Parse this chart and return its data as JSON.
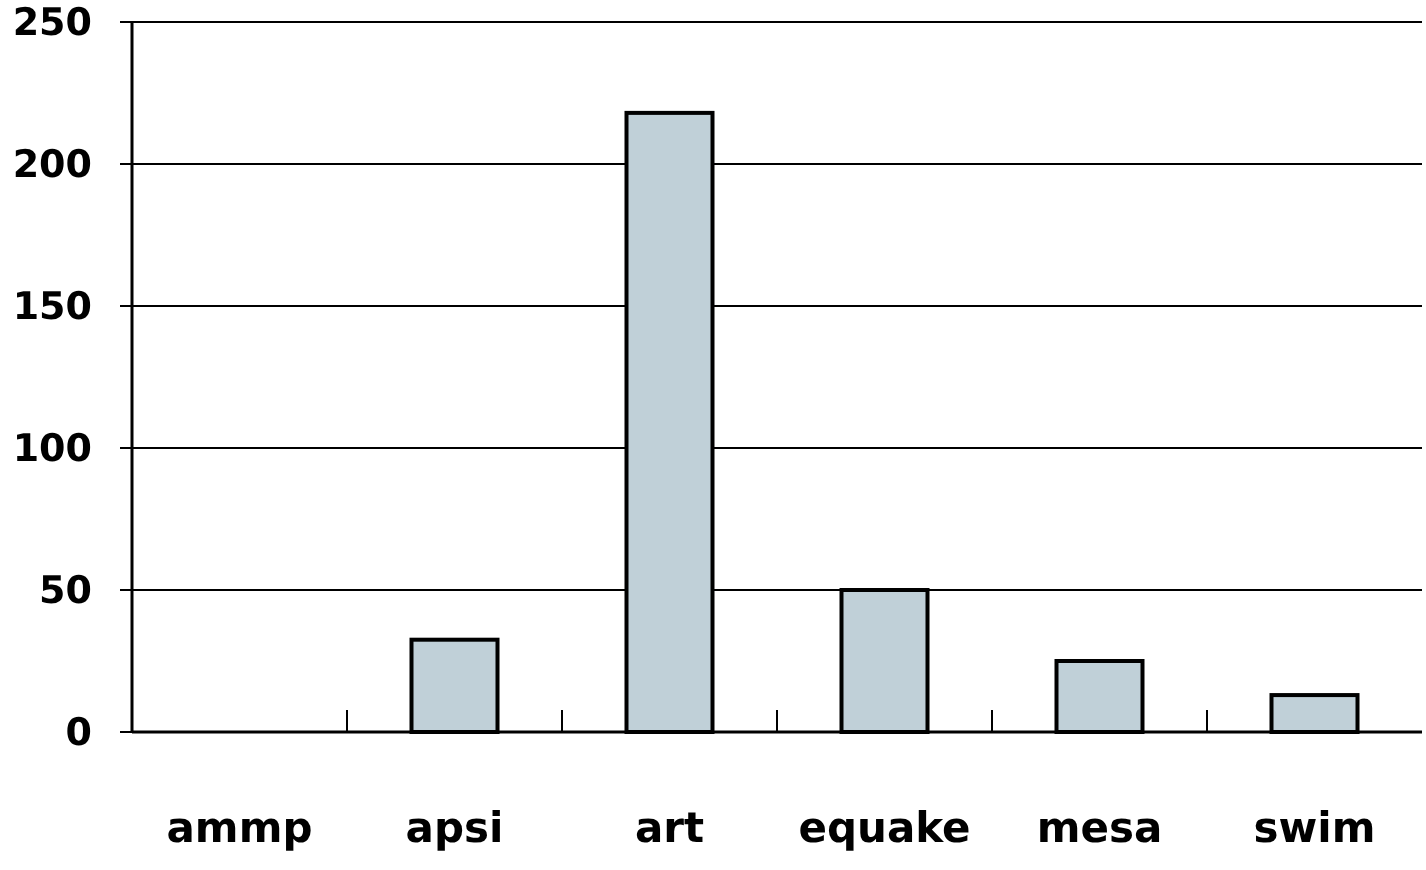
{
  "chart_data": {
    "type": "bar",
    "categories": [
      "ammp",
      "apsi",
      "art",
      "equake",
      "mesa",
      "swim"
    ],
    "values": [
      0,
      32.5,
      218,
      50,
      25,
      13
    ],
    "color": "#c0d0d8",
    "ylim": [
      0,
      250
    ],
    "yticks": [
      0,
      50,
      100,
      150,
      200,
      250
    ],
    "grid": "y"
  }
}
